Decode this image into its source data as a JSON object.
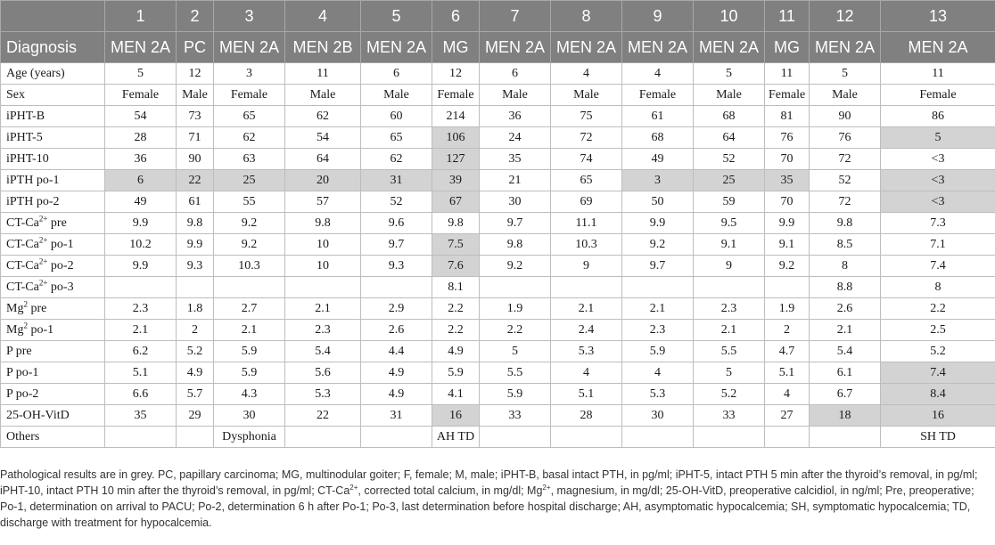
{
  "table": {
    "case_numbers": [
      "1",
      "2",
      "3",
      "4",
      "5",
      "6",
      "7",
      "8",
      "9",
      "10",
      "11",
      "12",
      "13"
    ],
    "diagnosis_label": "Diagnosis",
    "diagnoses": [
      "MEN 2A",
      "PC",
      "MEN 2A",
      "MEN 2B",
      "MEN 2A",
      "MG",
      "MEN 2A",
      "MEN 2A",
      "MEN 2A",
      "MEN 2A",
      "MG",
      "MEN 2A",
      "MEN 2A"
    ],
    "rows": [
      {
        "label": "Age (years)",
        "values": [
          "5",
          "12",
          "3",
          "11",
          "6",
          "12",
          "6",
          "4",
          "4",
          "5",
          "11",
          "5",
          "11"
        ]
      },
      {
        "label": "Sex",
        "values": [
          "Female",
          "Male",
          "Female",
          "Male",
          "Male",
          "Female",
          "Male",
          "Male",
          "Female",
          "Male",
          "Female",
          "Male",
          "Female"
        ]
      },
      {
        "label": "iPHT-B",
        "values": [
          "54",
          "73",
          "65",
          "62",
          "60",
          "214",
          "36",
          "75",
          "61",
          "68",
          "81",
          "90",
          "86"
        ]
      },
      {
        "label": "iPHT-5",
        "values": [
          "28",
          "71",
          "62",
          "54",
          "65",
          "106",
          "24",
          "72",
          "68",
          "64",
          "76",
          "76",
          "5"
        ]
      },
      {
        "label": "iPHT-10",
        "values": [
          "36",
          "90",
          "63",
          "64",
          "62",
          "127",
          "35",
          "74",
          "49",
          "52",
          "70",
          "72",
          "<3"
        ]
      },
      {
        "label": "iPTH po-1",
        "values": [
          "6",
          "22",
          "25",
          "20",
          "31",
          "39",
          "21",
          "65",
          "3",
          "25",
          "35",
          "52",
          "<3"
        ]
      },
      {
        "label": "iPTH po-2",
        "values": [
          "49",
          "61",
          "55",
          "57",
          "52",
          "67",
          "30",
          "69",
          "50",
          "59",
          "70",
          "72",
          "<3"
        ]
      },
      {
        "label": "CT-Ca",
        "sup": "2+",
        "suffix": " pre",
        "values": [
          "9.9",
          "9.8",
          "9.2",
          "9.8",
          "9.6",
          "9.8",
          "9.7",
          "11.1",
          "9.9",
          "9.5",
          "9.9",
          "9.8",
          "7.3"
        ]
      },
      {
        "label": "CT-Ca",
        "sup": "2+",
        "suffix": " po-1",
        "values": [
          "10.2",
          "9.9",
          "9.2",
          "10",
          "9.7",
          "7.5",
          "9.8",
          "10.3",
          "9.2",
          "9.1",
          "9.1",
          "8.5",
          "7.1"
        ]
      },
      {
        "label": "CT-Ca",
        "sup": "2+",
        "suffix": " po-2",
        "values": [
          "9.9",
          "9.3",
          "10.3",
          "10",
          "9.3",
          "7.6",
          "9.2",
          "9",
          "9.7",
          "9",
          "9.2",
          "8",
          "7.4"
        ]
      },
      {
        "label": "CT-Ca",
        "sup": "2+",
        "suffix": " po-3",
        "values": [
          "",
          "",
          "",
          "",
          "",
          "8.1",
          "",
          "",
          "",
          "",
          "",
          "8.8",
          "8"
        ]
      },
      {
        "label": "Mg",
        "sup": "2",
        "suffix": " pre",
        "values": [
          "2.3",
          "1.8",
          "2.7",
          "2.1",
          "2.9",
          "2.2",
          "1.9",
          "2.1",
          "2.1",
          "2.3",
          "1.9",
          "2.6",
          "2.2"
        ]
      },
      {
        "label": "Mg",
        "sup": "2",
        "suffix": " po-1",
        "values": [
          "2.1",
          "2",
          "2.1",
          "2.3",
          "2.6",
          "2.2",
          "2.2",
          "2.4",
          "2.3",
          "2.1",
          "2",
          "2.1",
          "2.5"
        ]
      },
      {
        "label": "P pre",
        "values": [
          "6.2",
          "5.2",
          "5.9",
          "5.4",
          "4.4",
          "4.9",
          "5",
          "5.3",
          "5.9",
          "5.5",
          "4.7",
          "5.4",
          "5.2"
        ]
      },
      {
        "label": "P po-1",
        "values": [
          "5.1",
          "4.9",
          "5.9",
          "5.6",
          "4.9",
          "5.9",
          "5.5",
          "4",
          "4",
          "5",
          "5.1",
          "6.1",
          "7.4"
        ]
      },
      {
        "label": "P po-2",
        "values": [
          "6.6",
          "5.7",
          "4.3",
          "5.3",
          "4.9",
          "4.1",
          "5.9",
          "5.1",
          "5.3",
          "5.2",
          "4",
          "6.7",
          "8.4"
        ]
      },
      {
        "label": "25-OH-VitD",
        "values": [
          "35",
          "29",
          "30",
          "22",
          "31",
          "16",
          "33",
          "28",
          "30",
          "33",
          "27",
          "18",
          "16"
        ]
      },
      {
        "label": "Others",
        "values": [
          "",
          "",
          "Dysphonia",
          "",
          "",
          "AH TD",
          "",
          "",
          "",
          "",
          "",
          "",
          "SH TD"
        ]
      }
    ],
    "grey_cells": {
      "3": [
        5,
        12
      ],
      "4": [
        5
      ],
      "5": [
        0,
        1,
        2,
        3,
        4,
        5,
        8,
        9,
        10,
        12
      ],
      "6": [
        5,
        12
      ],
      "8": [
        5
      ],
      "9": [
        5
      ],
      "14": [
        12
      ],
      "15": [
        12
      ],
      "16": [
        5,
        11,
        12
      ]
    }
  },
  "footnote": {
    "p1": "Pathological results are in grey. PC, papillary carcinoma; MG, multinodular goiter; F, female; M, male; iPHT-B, basal intact PTH, in pg/ml; iPHT-5, intact PTH 5 min after the thyroid’s removal, in pg/ml; iPHT-10, intact PTH 10 min after the thyroid’s removal, in pg/ml; CT-Ca",
    "sup1": "2+",
    "p2": ", corrected total calcium, in mg/dl; Mg",
    "sup2": "2+",
    "p3": ", magnesium, in mg/dl; 25-OH-VitD, preoperative calcidiol, in ng/ml; Pre, preoperative; Po-1, determination on arrival to PACU; Po-2, determination 6 h after Po-1; Po-3, last determination before hospital discharge; AH, asymptomatic hypocalcemia; SH, symptomatic hypocalcemia; TD, discharge with treatment for hypocalcemia."
  }
}
